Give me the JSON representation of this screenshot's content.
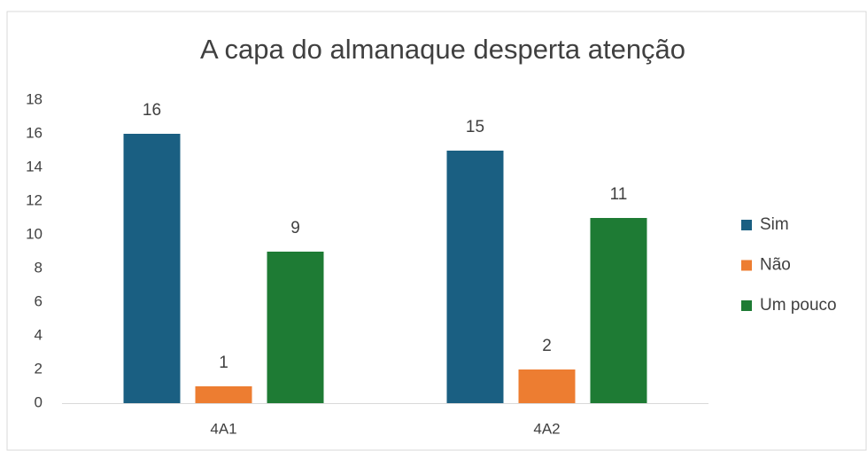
{
  "chart_data": {
    "type": "bar",
    "title": "A capa do almanaque desperta atenção",
    "categories": [
      "4A1",
      "4A2"
    ],
    "series": [
      {
        "name": "Sim",
        "color": "#1a5f82",
        "values": [
          16,
          15
        ]
      },
      {
        "name": "Não",
        "color": "#ed7d31",
        "values": [
          1,
          2
        ]
      },
      {
        "name": "Um pouco",
        "color": "#1e7b34",
        "values": [
          9,
          11
        ]
      }
    ],
    "ylim": [
      0,
      18
    ],
    "yticks": [
      0,
      2,
      4,
      6,
      8,
      10,
      12,
      14,
      16,
      18
    ],
    "grid": false,
    "legend": "right"
  }
}
